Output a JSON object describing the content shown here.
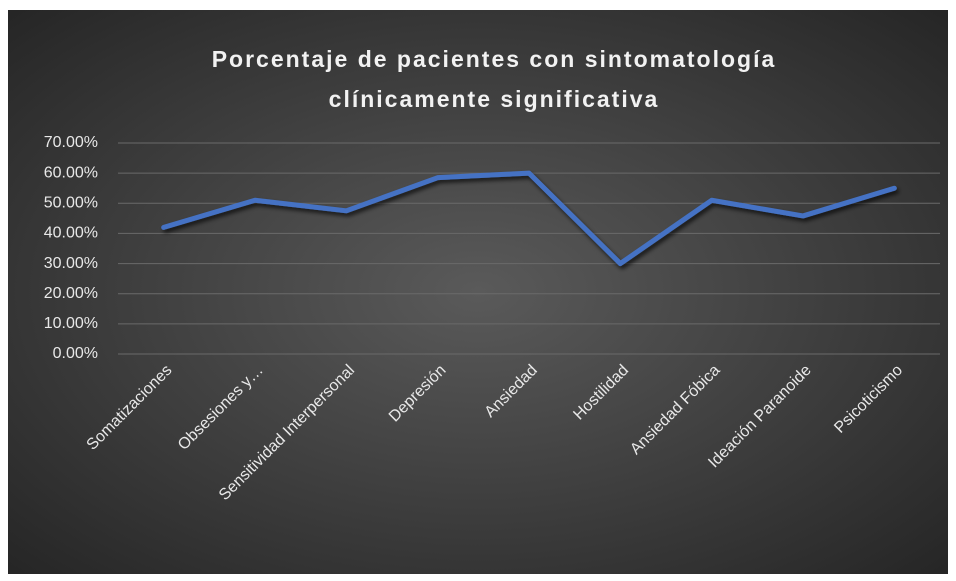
{
  "chart_data": {
    "type": "line",
    "title": [
      "Porcentaje de pacientes con sintomatología",
      "clínicamente significativa"
    ],
    "categories": [
      "Somatizaciones",
      "Obsesiones y…",
      "Sensitividad Interpersonal",
      "Depresión",
      "Ansiedad",
      "Hostilidad",
      "Ansiedad Fóbica",
      "Ideación Paranoide",
      "Psicoticismo"
    ],
    "series": [
      {
        "name": "Porcentaje",
        "color": "#4472c4",
        "values": [
          42,
          51,
          47.5,
          58.5,
          60,
          30,
          51,
          45.8,
          55
        ]
      }
    ],
    "ylim": [
      0,
      70
    ],
    "yticks": [
      {
        "value": 0,
        "label": "0.00%"
      },
      {
        "value": 10,
        "label": "10.00%"
      },
      {
        "value": 20,
        "label": "20.00%"
      },
      {
        "value": 30,
        "label": "30.00%"
      },
      {
        "value": 40,
        "label": "40.00%"
      },
      {
        "value": 50,
        "label": "50.00%"
      },
      {
        "value": 60,
        "label": "60.00%"
      },
      {
        "value": 70,
        "label": "70.00%"
      }
    ],
    "grid": true
  }
}
